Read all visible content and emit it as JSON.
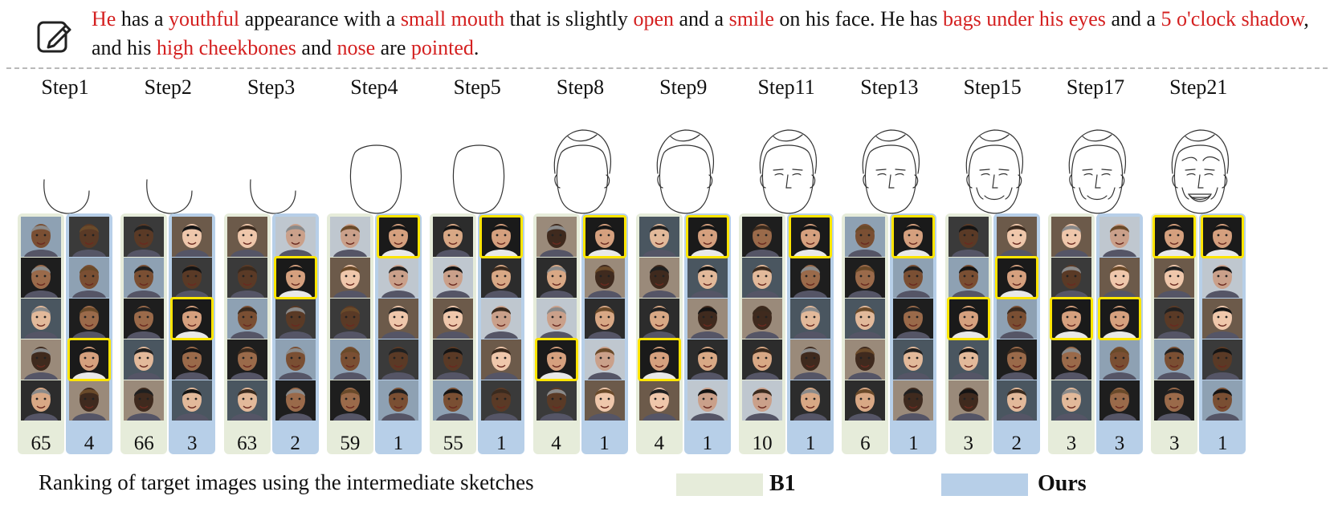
{
  "caption": {
    "segments": [
      {
        "text": "He",
        "highlight": true
      },
      {
        "text": " has a ",
        "highlight": false
      },
      {
        "text": "youthful",
        "highlight": true
      },
      {
        "text": " appearance with a ",
        "highlight": false
      },
      {
        "text": "small mouth",
        "highlight": true
      },
      {
        "text": " that is slightly ",
        "highlight": false
      },
      {
        "text": "open",
        "highlight": true
      },
      {
        "text": " and a ",
        "highlight": false
      },
      {
        "text": "smile",
        "highlight": true
      },
      {
        "text": " on his face. He has ",
        "highlight": false
      },
      {
        "text": "bags under his eyes",
        "highlight": true
      },
      {
        "text": " and a ",
        "highlight": false
      },
      {
        "text": "5 o'clock shadow",
        "highlight": true
      },
      {
        "text": ", and his ",
        "highlight": false
      },
      {
        "text": "high cheekbones",
        "highlight": true
      },
      {
        "text": " and ",
        "highlight": false
      },
      {
        "text": "nose",
        "highlight": true
      },
      {
        "text": " are ",
        "highlight": false
      },
      {
        "text": "pointed",
        "highlight": true
      },
      {
        "text": ".",
        "highlight": false
      }
    ]
  },
  "icon": "edit-note-icon",
  "colors": {
    "highlight": "#d42020",
    "b1": "#e6ecda",
    "ours": "#b7cfe8",
    "hit": "#ffe500"
  },
  "steps": [
    {
      "label": "Step1",
      "b1_rank": "65",
      "ours_rank": "4",
      "b1_hits": [],
      "ours_hits": [
        3
      ],
      "detail": 1
    },
    {
      "label": "Step2",
      "b1_rank": "66",
      "ours_rank": "3",
      "b1_hits": [],
      "ours_hits": [
        2
      ],
      "detail": 1
    },
    {
      "label": "Step3",
      "b1_rank": "63",
      "ours_rank": "2",
      "b1_hits": [],
      "ours_hits": [
        1
      ],
      "detail": 1
    },
    {
      "label": "Step4",
      "b1_rank": "59",
      "ours_rank": "1",
      "b1_hits": [],
      "ours_hits": [
        0
      ],
      "detail": 2
    },
    {
      "label": "Step5",
      "b1_rank": "55",
      "ours_rank": "1",
      "b1_hits": [],
      "ours_hits": [
        0
      ],
      "detail": 2
    },
    {
      "label": "Step8",
      "b1_rank": "4",
      "ours_rank": "1",
      "b1_hits": [
        3
      ],
      "ours_hits": [
        0
      ],
      "detail": 3
    },
    {
      "label": "Step9",
      "b1_rank": "4",
      "ours_rank": "1",
      "b1_hits": [
        3
      ],
      "ours_hits": [
        0
      ],
      "detail": 3
    },
    {
      "label": "Step11",
      "b1_rank": "10",
      "ours_rank": "1",
      "b1_hits": [],
      "ours_hits": [
        0
      ],
      "detail": 4
    },
    {
      "label": "Step13",
      "b1_rank": "6",
      "ours_rank": "1",
      "b1_hits": [],
      "ours_hits": [
        0
      ],
      "detail": 4
    },
    {
      "label": "Step15",
      "b1_rank": "3",
      "ours_rank": "2",
      "b1_hits": [
        2
      ],
      "ours_hits": [
        1
      ],
      "detail": 5
    },
    {
      "label": "Step17",
      "b1_rank": "3",
      "ours_rank": "3",
      "b1_hits": [
        2
      ],
      "ours_hits": [
        2
      ],
      "detail": 5
    },
    {
      "label": "Step21",
      "b1_rank": "3",
      "ours_rank": "1",
      "b1_hits": [
        0
      ],
      "ours_hits": [
        0
      ],
      "detail": 6
    }
  ],
  "footer": {
    "text": "Ranking of target images using the intermediate sketches"
  },
  "legend": [
    {
      "name": "B1",
      "color": "#e6ecda"
    },
    {
      "name": "Ours",
      "color": "#b7cfe8"
    }
  ]
}
